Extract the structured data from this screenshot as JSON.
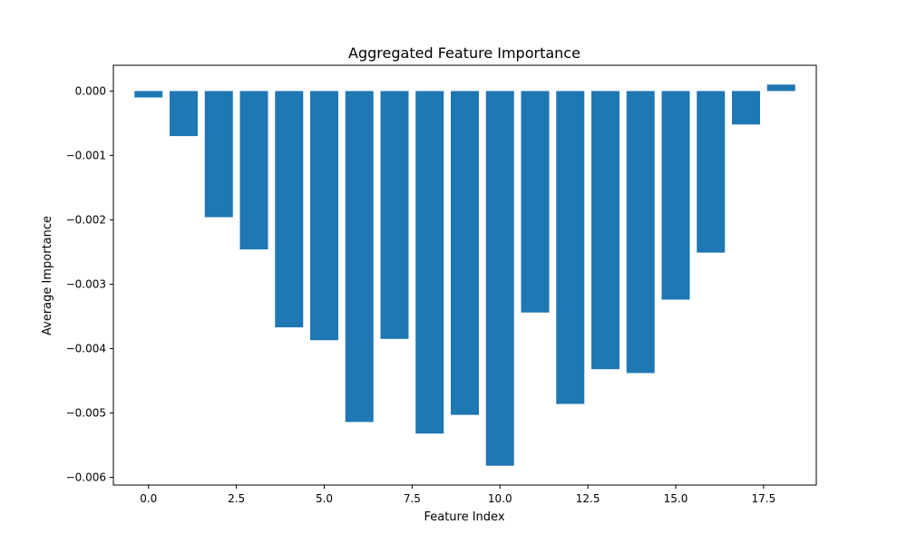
{
  "chart_data": {
    "type": "bar",
    "title": "Aggregated Feature Importance",
    "xlabel": "Feature Index",
    "ylabel": "Average Importance",
    "x": [
      0,
      1,
      2,
      3,
      4,
      5,
      6,
      7,
      8,
      9,
      10,
      11,
      12,
      13,
      14,
      15,
      16,
      17,
      18
    ],
    "values": [
      -0.0001,
      -0.0007,
      -0.00196,
      -0.00246,
      -0.00367,
      -0.00387,
      -0.00514,
      -0.00385,
      -0.00532,
      -0.00503,
      -0.00582,
      -0.00344,
      -0.00486,
      -0.00432,
      -0.00438,
      -0.00324,
      -0.00251,
      -0.00052,
      0.0001
    ],
    "xlim": [
      -1.0,
      19.0
    ],
    "ylim": [
      -0.00612,
      0.0004
    ],
    "xticks": [
      0.0,
      2.5,
      5.0,
      7.5,
      10.0,
      12.5,
      15.0,
      17.5
    ],
    "xtick_labels": [
      "0.0",
      "2.5",
      "5.0",
      "7.5",
      "10.0",
      "12.5",
      "15.0",
      "17.5"
    ],
    "yticks": [
      0.0,
      -0.001,
      -0.002,
      -0.003,
      -0.004,
      -0.005,
      -0.006
    ],
    "ytick_labels": [
      "0.000",
      "−0.001",
      "−0.002",
      "−0.003",
      "−0.004",
      "−0.005",
      "−0.006"
    ],
    "bar_width": 0.8,
    "bar_color": "#1f77b4",
    "grid": false,
    "legend": false
  }
}
